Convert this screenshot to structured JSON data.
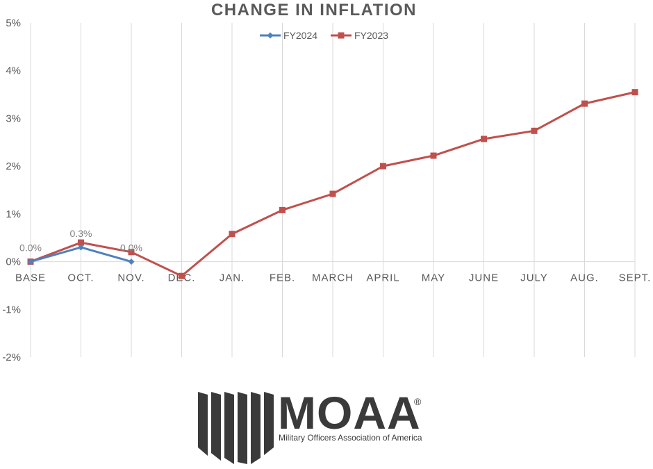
{
  "chart_data": {
    "type": "line",
    "title": "CHANGE IN INFLATION",
    "categories": [
      "BASE",
      "OCT.",
      "NOV.",
      "DEC.",
      "JAN.",
      "FEB.",
      "MARCH",
      "APRIL",
      "MAY",
      "JUNE",
      "JULY",
      "AUG.",
      "SEPT."
    ],
    "ylim": [
      -2,
      5
    ],
    "yticks": [
      -2,
      -1,
      0,
      1,
      2,
      3,
      4,
      5
    ],
    "ytick_labels": [
      "-2%",
      "-1%",
      "0%",
      "1%",
      "2%",
      "3%",
      "4%",
      "5%"
    ],
    "grid": "vertical",
    "legend_position": "top-center",
    "series": [
      {
        "name": "FY2024",
        "color": "#4f81bd",
        "marker": "diamond",
        "values": [
          0.0,
          0.3,
          0.0,
          null,
          null,
          null,
          null,
          null,
          null,
          null,
          null,
          null,
          null
        ],
        "data_labels": [
          "0.0%",
          "0.3%",
          "0.0%"
        ]
      },
      {
        "name": "FY2023",
        "color": "#c0504d",
        "marker": "square",
        "values": [
          0.0,
          0.4,
          0.2,
          -0.3,
          0.58,
          1.08,
          1.42,
          2.0,
          2.22,
          2.57,
          2.74,
          3.31,
          3.55
        ]
      }
    ]
  },
  "logo": {
    "wordmark": "MOAA",
    "registered_mark": "®",
    "tagline": "Military Officers Association of America",
    "color": "#3a3a3a"
  }
}
